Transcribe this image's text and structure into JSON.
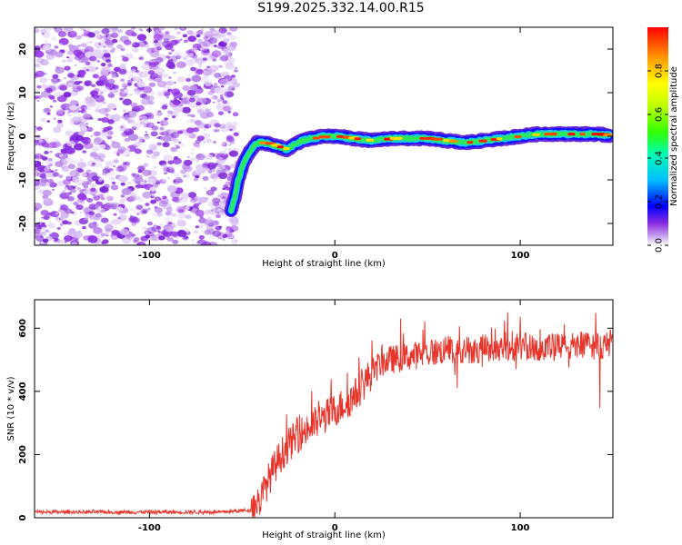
{
  "title": "S199.2025.332.14.00.R15",
  "chart_data": [
    {
      "type": "heatmap",
      "name": "spectrogram",
      "xlabel": "Height of straight line (km)",
      "ylabel": "Frequency (Hz)",
      "xlim": [
        -162,
        150
      ],
      "ylim": [
        -25,
        25
      ],
      "xticks": [
        -100,
        0,
        100
      ],
      "yticks": [
        -20,
        -10,
        0,
        10,
        20
      ],
      "colorbar": {
        "label": "Normalized spectral amplitude",
        "range": [
          0,
          1
        ],
        "ticks": [
          "0.0",
          "0.2",
          "0.4",
          "0.6",
          "0.8"
        ],
        "tick_values": [
          0.0,
          0.2,
          0.4,
          0.6,
          0.8
        ]
      },
      "noise_region": {
        "x_range": [
          -162,
          -53
        ],
        "color": "#9b3de8"
      },
      "signal_track": {
        "x": [
          -56,
          -54,
          -52,
          -50,
          -48,
          -45,
          -42,
          -38,
          -34,
          -30,
          -26,
          -22,
          -18,
          -12,
          -6,
          0,
          10,
          20,
          30,
          40,
          50,
          60,
          70,
          80,
          90,
          100,
          110,
          120,
          130,
          140,
          148
        ],
        "y": [
          -17,
          -14,
          -10,
          -7,
          -5,
          -3,
          -1.5,
          -1.5,
          -2,
          -2.5,
          -3,
          -2,
          -1,
          -0.5,
          0,
          0,
          -0.5,
          -1,
          -0.5,
          -0.5,
          -0.5,
          -1,
          -1.5,
          -1,
          -0.5,
          0,
          0.5,
          0.5,
          0.5,
          0.5,
          0.2
        ]
      }
    },
    {
      "type": "line",
      "name": "snr",
      "xlabel": "Height of straight line (km)",
      "ylabel": "SNR (10 * v/v)",
      "xlim": [
        -162,
        150
      ],
      "ylim": [
        0,
        690
      ],
      "xticks": [
        -100,
        0,
        100
      ],
      "yticks": [
        0,
        200,
        400,
        600
      ],
      "color": "#e8332a",
      "envelope": {
        "x": [
          -162,
          -60,
          -45,
          -40,
          -35,
          -30,
          -25,
          -20,
          -15,
          -10,
          -5,
          0,
          5,
          10,
          15,
          20,
          25,
          30,
          40,
          50,
          60,
          70,
          80,
          90,
          100,
          110,
          120,
          130,
          140,
          150
        ],
        "y": [
          18,
          18,
          25,
          60,
          130,
          190,
          230,
          260,
          280,
          300,
          320,
          340,
          360,
          380,
          420,
          460,
          490,
          500,
          510,
          520,
          530,
          530,
          535,
          540,
          540,
          540,
          540,
          545,
          545,
          545
        ]
      }
    }
  ]
}
